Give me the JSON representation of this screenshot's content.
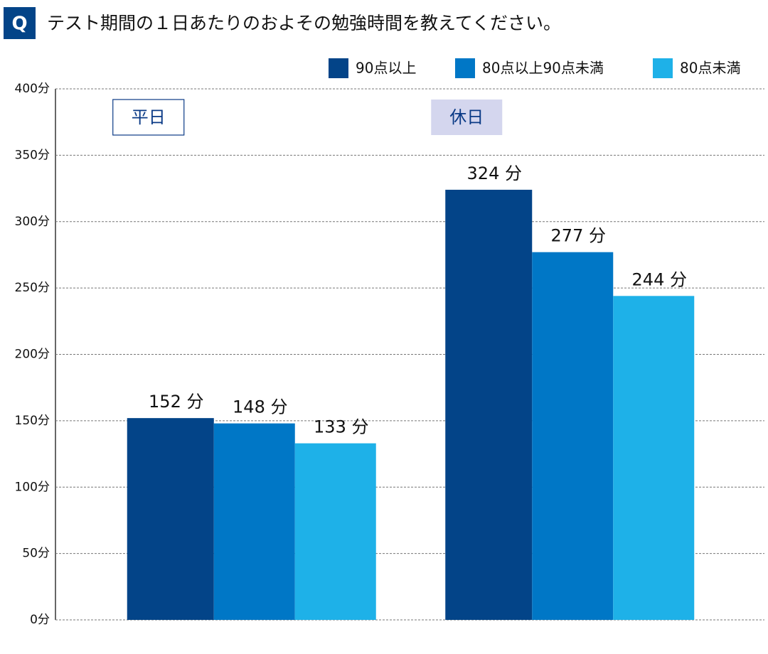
{
  "chart_data": {
    "type": "bar",
    "badge": "Q",
    "title": "テスト期間の１日あたりのおよその勉強時間を教えてください。",
    "categories": [
      "平日",
      "休日"
    ],
    "series": [
      {
        "name": "90点以上",
        "color": "#034488",
        "values": [
          152,
          324
        ],
        "value_labels": [
          "152 分",
          "324 分"
        ]
      },
      {
        "name": "80点以上90点未満",
        "color": "#0077c6",
        "values": [
          148,
          277
        ],
        "value_labels": [
          "148 分",
          "277 分"
        ]
      },
      {
        "name": "80点未満",
        "color": "#1eb1e8",
        "values": [
          133,
          244
        ],
        "value_labels": [
          "133 分",
          "244 分"
        ]
      }
    ],
    "ylim": [
      0,
      400
    ],
    "yticks": [
      {
        "value": 0,
        "label": "0分"
      },
      {
        "value": 50,
        "label": "50分"
      },
      {
        "value": 100,
        "label": "100分"
      },
      {
        "value": 150,
        "label": "150分"
      },
      {
        "value": 200,
        "label": "200分"
      },
      {
        "value": 250,
        "label": "250分"
      },
      {
        "value": 300,
        "label": "300分"
      },
      {
        "value": 350,
        "label": "350分"
      },
      {
        "value": 400,
        "label": "400分"
      }
    ],
    "grid": true
  }
}
